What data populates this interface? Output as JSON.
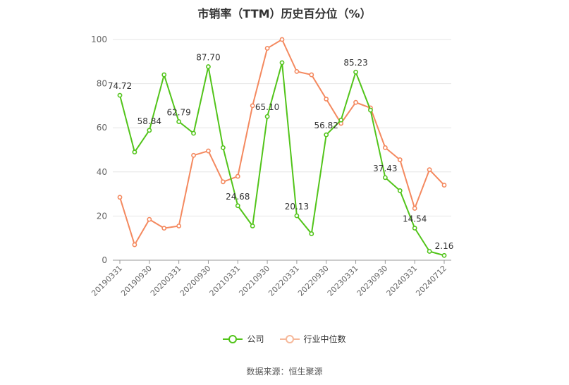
{
  "chart_data": {
    "type": "line",
    "title": "市销率（TTM）历史百分位（%）",
    "ylim": [
      0,
      100
    ],
    "yticks": [
      0,
      20,
      40,
      60,
      80,
      100
    ],
    "grid": true,
    "legend_position": "bottom",
    "x": [
      "20190331",
      "20190630",
      "20190930",
      "20191231",
      "20200331",
      "20200630",
      "20200930",
      "20201231",
      "20210331",
      "20210630",
      "20210930",
      "20211231",
      "20220331",
      "20220630",
      "20220930",
      "20221231",
      "20230331",
      "20230630",
      "20230930",
      "20231231",
      "20240331",
      "20240630",
      "20240712"
    ],
    "xtick_labels": [
      "20190331",
      "20190930",
      "20200331",
      "20200930",
      "20210331",
      "20210930",
      "20220331",
      "20220930",
      "20230331",
      "20230930",
      "20240331",
      "20240712"
    ],
    "series": [
      {
        "name": "公司",
        "color": "#52c41a",
        "values": [
          74.72,
          49,
          58.84,
          84,
          62.79,
          57.5,
          87.7,
          51,
          24.68,
          15.5,
          65.1,
          89.5,
          20.13,
          12,
          56.82,
          63.5,
          85.23,
          68,
          37.43,
          31.5,
          14.54,
          4,
          2.16
        ],
        "labels": {
          "0": "74.72",
          "2": "58.84",
          "4": "62.79",
          "6": "87.70",
          "8": "24.68",
          "10": "65.10",
          "12": "20.13",
          "14": "56.82",
          "16": "85.23",
          "18": "37.43",
          "20": "14.54",
          "22": "2.16"
        }
      },
      {
        "name": "行业中位数",
        "color": "#f4895f",
        "values": [
          28.5,
          7,
          18.5,
          14.5,
          15.5,
          47.5,
          49.5,
          35.5,
          38,
          70,
          96,
          100,
          85.5,
          84,
          73,
          62,
          71.5,
          69,
          51,
          45.5,
          23.5,
          41,
          34
        ],
        "labels": {}
      }
    ]
  },
  "legend": {
    "items": [
      "公司",
      "行业中位数"
    ]
  },
  "source": "数据来源：恒生聚源"
}
